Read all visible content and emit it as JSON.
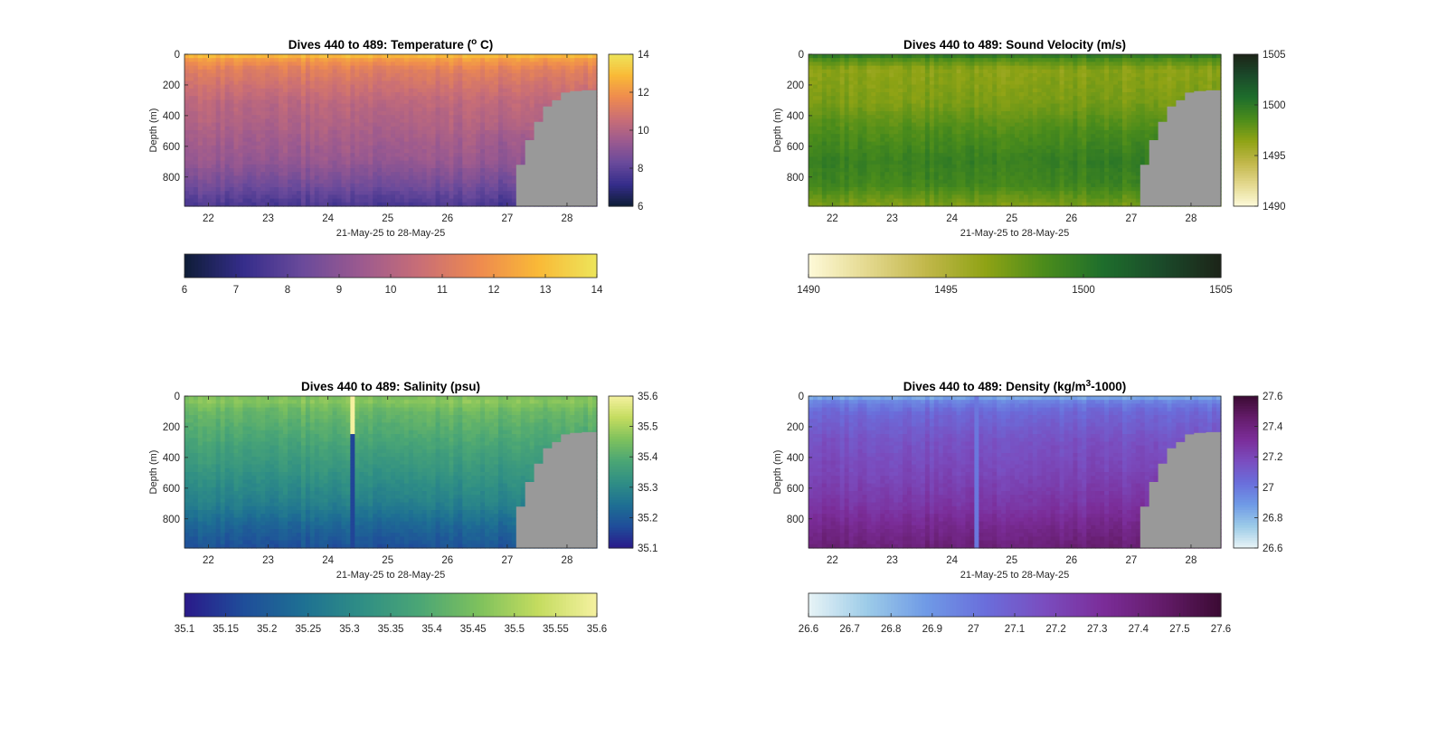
{
  "figure": {
    "background": "#ffffff"
  },
  "chart_data": [
    {
      "type": "heatmap",
      "id": "temp",
      "title_main": "Dives 440 to 489: Temperature (",
      "title_sup": "o",
      "title_tail": " C)",
      "xlabel": "21-May-25 to 28-May-25",
      "ylabel": "Depth (m)",
      "x_ticks": [
        "22",
        "23",
        "24",
        "25",
        "26",
        "27",
        "28"
      ],
      "y_ticks": [
        "0",
        "200",
        "400",
        "600",
        "800"
      ],
      "xlim": [
        21.6,
        28.5
      ],
      "ylim": [
        0,
        990
      ],
      "colormap": [
        "#0e1d37",
        "#352d8b",
        "#6a4a9b",
        "#9c5a8f",
        "#c96e76",
        "#ee8a4f",
        "#f9b937",
        "#ede55a"
      ],
      "clim": [
        6,
        14
      ],
      "vertical_colorbar_ticks": [
        "6",
        "8",
        "10",
        "12",
        "14"
      ],
      "horizontal_colorbar_ticks": [
        "6",
        "7",
        "8",
        "9",
        "10",
        "11",
        "12",
        "13",
        "14"
      ],
      "profile_depth_m": [
        0,
        30,
        100,
        300,
        500,
        700,
        850,
        990
      ],
      "profile_values": [
        13.3,
        12.2,
        11.3,
        10.3,
        9.8,
        9.3,
        8.5,
        7.6
      ],
      "gap_color": "#999999",
      "seafloor_depth_x": [
        27.15,
        27.3,
        27.45,
        27.6,
        27.75,
        27.9,
        28.05,
        28.25,
        28.5
      ],
      "seafloor_depth_m": [
        720,
        560,
        440,
        340,
        300,
        250,
        240,
        235,
        230
      ]
    },
    {
      "type": "heatmap",
      "id": "sv",
      "title_main": "Dives 440 to 489: Sound Velocity (m/s)",
      "title_sup": "",
      "title_tail": "",
      "xlabel": "21-May-25 to 28-May-25",
      "ylabel": "Depth (m)",
      "x_ticks": [
        "22",
        "23",
        "24",
        "25",
        "26",
        "27",
        "28"
      ],
      "y_ticks": [
        "0",
        "200",
        "400",
        "600",
        "800"
      ],
      "xlim": [
        21.6,
        28.5
      ],
      "ylim": [
        0,
        990
      ],
      "colormap": [
        "#fefad9",
        "#e4d98e",
        "#c1b74a",
        "#8fa315",
        "#4b8c1b",
        "#1e6e2c",
        "#1b4a2a",
        "#1c2418"
      ],
      "clim": [
        1490,
        1505
      ],
      "vertical_colorbar_ticks": [
        "1490",
        "1495",
        "1500",
        "1505"
      ],
      "horizontal_colorbar_ticks": [
        "1490",
        "1495",
        "1500",
        "1505"
      ],
      "profile_depth_m": [
        0,
        30,
        100,
        300,
        500,
        700,
        850,
        990
      ],
      "profile_values": [
        1500.5,
        1498.5,
        1496.5,
        1497.0,
        1498.5,
        1499.5,
        1499.0,
        1497.0
      ],
      "gap_color": "#999999",
      "seafloor_depth_x": [
        27.15,
        27.3,
        27.45,
        27.6,
        27.75,
        27.9,
        28.05,
        28.25,
        28.5
      ],
      "seafloor_depth_m": [
        720,
        560,
        440,
        340,
        300,
        250,
        240,
        235,
        230
      ]
    },
    {
      "type": "heatmap",
      "id": "sal",
      "title_main": "Dives 440 to 489: Salinity (psu)",
      "title_sup": "",
      "title_tail": "",
      "xlabel": "21-May-25 to 28-May-25",
      "ylabel": "Depth (m)",
      "x_ticks": [
        "22",
        "23",
        "24",
        "25",
        "26",
        "27",
        "28"
      ],
      "y_ticks": [
        "0",
        "200",
        "400",
        "600",
        "800"
      ],
      "xlim": [
        21.6,
        28.5
      ],
      "ylim": [
        0,
        990
      ],
      "colormap": [
        "#2a1a8a",
        "#1f4d9a",
        "#1e7093",
        "#2f8e85",
        "#4ba675",
        "#7ec15d",
        "#c4dc5f",
        "#f5f1a0"
      ],
      "clim": [
        35.1,
        35.6
      ],
      "vertical_colorbar_ticks": [
        "35.1",
        "35.2",
        "35.3",
        "35.4",
        "35.5",
        "35.6"
      ],
      "horizontal_colorbar_ticks": [
        "35.1",
        "35.15",
        "35.2",
        "35.25",
        "35.3",
        "35.35",
        "35.4",
        "35.45",
        "35.5",
        "35.55",
        "35.6"
      ],
      "profile_depth_m": [
        0,
        30,
        100,
        300,
        500,
        700,
        850,
        990
      ],
      "profile_values": [
        35.45,
        35.47,
        35.43,
        35.38,
        35.33,
        35.28,
        35.22,
        35.18
      ],
      "gap_color": "#999999",
      "seafloor_depth_x": [
        27.15,
        27.3,
        27.45,
        27.6,
        27.75,
        27.9,
        28.05,
        28.25,
        28.5
      ],
      "seafloor_depth_m": [
        720,
        560,
        440,
        340,
        300,
        250,
        240,
        235,
        230
      ]
    },
    {
      "type": "heatmap",
      "id": "dens",
      "title_main": "Dives 440 to 489: Density (kg/m",
      "title_sup": "3",
      "title_tail": "-1000)",
      "xlabel": "21-May-25 to 28-May-25",
      "ylabel": "Depth (m)",
      "x_ticks": [
        "22",
        "23",
        "24",
        "25",
        "26",
        "27",
        "28"
      ],
      "y_ticks": [
        "0",
        "200",
        "400",
        "600",
        "800"
      ],
      "xlim": [
        21.6,
        28.5
      ],
      "ylim": [
        0,
        990
      ],
      "colormap": [
        "#e8f4f6",
        "#9ccbe8",
        "#6f9ae6",
        "#6a6edb",
        "#7a4dbf",
        "#7b2d99",
        "#641c6a",
        "#3b0b33"
      ],
      "clim": [
        26.6,
        27.6
      ],
      "vertical_colorbar_ticks": [
        "26.6",
        "26.8",
        "27",
        "27.2",
        "27.4",
        "27.6"
      ],
      "horizontal_colorbar_ticks": [
        "26.6",
        "26.7",
        "26.8",
        "26.9",
        "27",
        "27.1",
        "27.2",
        "27.3",
        "27.4",
        "27.5",
        "27.6"
      ],
      "profile_depth_m": [
        0,
        30,
        100,
        300,
        500,
        700,
        850,
        990
      ],
      "profile_values": [
        26.8,
        26.95,
        27.05,
        27.15,
        27.2,
        27.27,
        27.35,
        27.42
      ],
      "gap_color": "#999999",
      "seafloor_depth_x": [
        27.15,
        27.3,
        27.45,
        27.6,
        27.75,
        27.9,
        28.05,
        28.25,
        28.5
      ],
      "seafloor_depth_m": [
        720,
        560,
        440,
        340,
        300,
        250,
        240,
        235,
        230
      ]
    }
  ]
}
